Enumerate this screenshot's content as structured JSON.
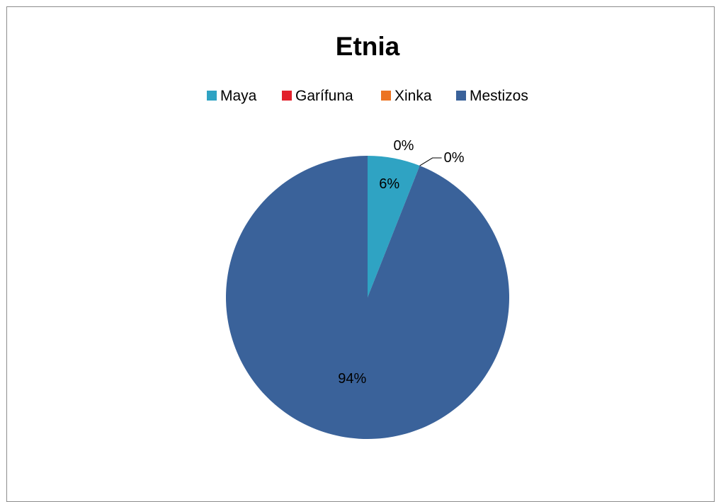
{
  "chart_data": {
    "type": "pie",
    "title": "Etnia",
    "legend_position": "top",
    "categories": [
      "Maya",
      "Garífuna",
      "Xinka",
      "Mestizos"
    ],
    "values": [
      6,
      0,
      0,
      94
    ],
    "value_labels": [
      "6%",
      "0%",
      "0%",
      "94%"
    ],
    "colors": [
      "#2fa3c3",
      "#e2202b",
      "#ec7423",
      "#3a629a"
    ]
  }
}
